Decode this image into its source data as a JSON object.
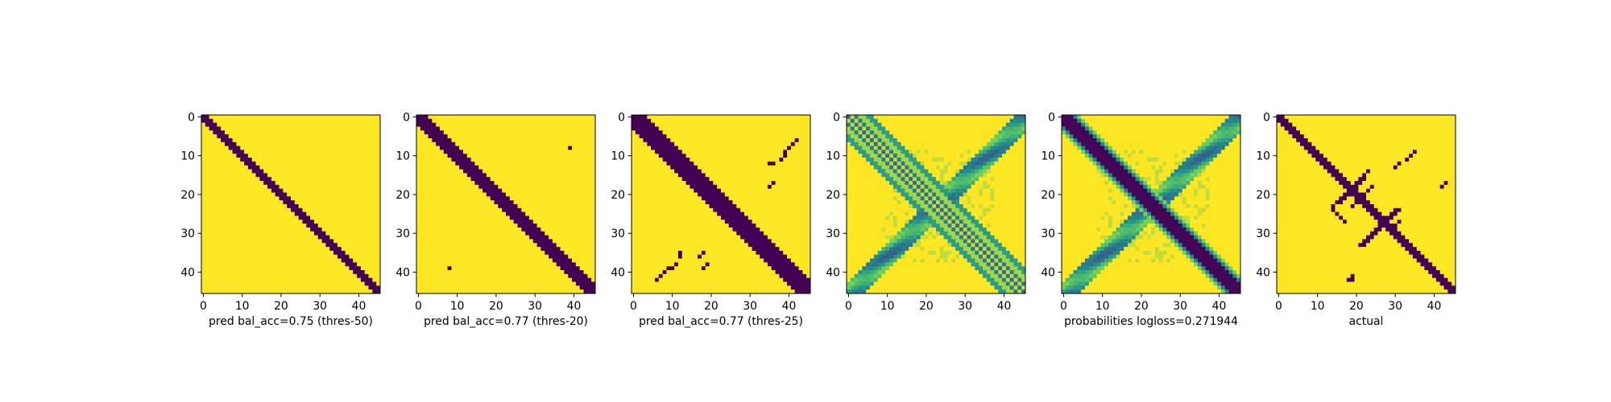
{
  "chart_data": [
    {
      "type": "heatmap",
      "colormap": "viridis",
      "xlabel": "pred bal_acc=0.75 (thres-50)",
      "grid_size": 46,
      "xticks": [
        0,
        10,
        20,
        30,
        40
      ],
      "yticks": [
        0,
        10,
        20,
        30,
        40
      ],
      "binary": true,
      "diagonal_band": [
        0,
        1
      ],
      "blobs": []
    },
    {
      "type": "heatmap",
      "colormap": "viridis",
      "xlabel": "pred bal_acc=0.77 (thres-20)",
      "grid_size": 46,
      "xticks": [
        0,
        10,
        20,
        30,
        40
      ],
      "yticks": [
        0,
        10,
        20,
        30,
        40
      ],
      "binary": true,
      "diagonal_band": [
        0,
        2
      ],
      "blobs": [
        [
          8,
          39
        ],
        [
          39,
          8
        ]
      ]
    },
    {
      "type": "heatmap",
      "colormap": "viridis",
      "xlabel": "pred bal_acc=0.77 (thres-25)",
      "grid_size": 46,
      "xticks": [
        0,
        10,
        20,
        30,
        40
      ],
      "yticks": [
        0,
        10,
        20,
        30,
        40
      ],
      "binary": true,
      "diagonal_band": [
        0,
        3
      ],
      "blobs": [
        [
          6,
          42
        ],
        [
          7,
          41
        ],
        [
          8,
          40
        ],
        [
          9,
          39
        ],
        [
          10,
          39
        ],
        [
          11,
          38
        ],
        [
          12,
          36
        ],
        [
          12,
          35
        ],
        [
          17,
          36
        ],
        [
          18,
          35
        ],
        [
          42,
          6
        ],
        [
          41,
          7
        ],
        [
          40,
          8
        ],
        [
          39,
          9
        ],
        [
          39,
          10
        ],
        [
          38,
          11
        ],
        [
          36,
          12
        ],
        [
          35,
          12
        ],
        [
          36,
          17
        ],
        [
          35,
          18
        ],
        [
          39,
          18
        ],
        [
          38,
          19
        ]
      ]
    },
    {
      "type": "heatmap",
      "colormap": "viridis",
      "xlabel": "",
      "grid_size": 46,
      "xticks": [
        0,
        10,
        20,
        30,
        40
      ],
      "yticks": [
        0,
        10,
        20,
        30,
        40
      ],
      "binary": false,
      "value_range": [
        0,
        1
      ],
      "pattern": "raw_contact_probabilities"
    },
    {
      "type": "heatmap",
      "colormap": "viridis",
      "xlabel": "probabilities logloss=0.271944",
      "grid_size": 46,
      "xticks": [
        0,
        10,
        20,
        30,
        40
      ],
      "yticks": [
        0,
        10,
        20,
        30,
        40
      ],
      "binary": false,
      "value_range": [
        0,
        1
      ],
      "pattern": "smoothed_contact_probabilities"
    },
    {
      "type": "heatmap",
      "colormap": "viridis",
      "xlabel": "actual",
      "grid_size": 46,
      "xticks": [
        0,
        10,
        20,
        30,
        40
      ],
      "yticks": [
        0,
        10,
        20,
        30,
        40
      ],
      "binary": true,
      "diagonal_band": [
        0,
        1
      ],
      "blobs": [
        [
          14,
          23
        ],
        [
          15,
          22
        ],
        [
          16,
          21
        ],
        [
          16,
          22
        ],
        [
          17,
          20
        ],
        [
          17,
          21
        ],
        [
          18,
          19
        ],
        [
          18,
          20
        ],
        [
          18,
          24
        ],
        [
          19,
          18
        ],
        [
          19,
          19
        ],
        [
          19,
          23
        ],
        [
          20,
          17
        ],
        [
          20,
          18
        ],
        [
          20,
          22
        ],
        [
          21,
          16
        ],
        [
          21,
          17
        ],
        [
          21,
          21
        ],
        [
          22,
          15
        ],
        [
          22,
          16
        ],
        [
          22,
          20
        ],
        [
          23,
          14
        ],
        [
          23,
          19
        ],
        [
          24,
          30
        ],
        [
          24,
          31
        ],
        [
          25,
          29
        ],
        [
          25,
          30
        ],
        [
          26,
          28
        ],
        [
          26,
          29
        ],
        [
          27,
          27
        ],
        [
          27,
          28
        ],
        [
          27,
          31
        ],
        [
          28,
          26
        ],
        [
          28,
          27
        ],
        [
          28,
          30
        ],
        [
          29,
          25
        ],
        [
          29,
          26
        ],
        [
          30,
          24
        ],
        [
          30,
          25
        ],
        [
          31,
          23
        ],
        [
          31,
          24
        ],
        [
          32,
          22
        ],
        [
          32,
          23
        ],
        [
          33,
          21
        ],
        [
          33,
          22
        ],
        [
          24,
          14
        ],
        [
          25,
          15
        ],
        [
          26,
          16
        ],
        [
          27,
          17
        ],
        [
          13,
          30
        ],
        [
          12,
          31
        ],
        [
          11,
          33
        ],
        [
          10,
          34
        ],
        [
          9,
          35
        ],
        [
          18,
          42
        ],
        [
          17,
          43
        ],
        [
          42,
          18
        ],
        [
          41,
          19
        ],
        [
          42,
          19
        ],
        [
          13,
          13
        ],
        [
          14,
          14
        ]
      ]
    }
  ]
}
